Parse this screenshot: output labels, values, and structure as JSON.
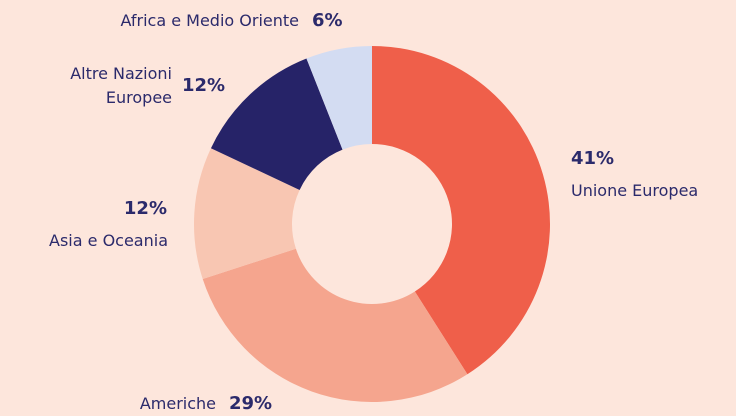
{
  "chart_data": {
    "type": "donut",
    "categories": [
      "Unione Europea",
      "Americhe",
      "Asia e Oceania",
      "Altre Nazioni Europee",
      "Africa e Medio Oriente"
    ],
    "values": [
      41,
      29,
      12,
      12,
      6
    ],
    "value_labels": [
      "41%",
      "29%",
      "12%",
      "12%",
      "6%"
    ],
    "colors": [
      "#ef5f4a",
      "#f5a58e",
      "#f8c6b2",
      "#262368",
      "#d3dcf2"
    ]
  }
}
